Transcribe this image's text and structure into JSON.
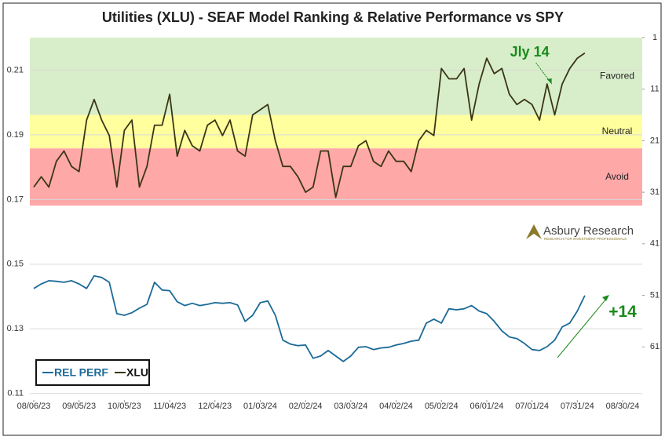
{
  "chart_data": {
    "type": "line",
    "title": "Utilities (XLU) - SEAF Model Ranking & Relative Performance vs SPY",
    "x": [
      "2023-08-06",
      "2023-08-11",
      "2023-08-16",
      "2023-08-21",
      "2023-08-26",
      "2023-08-31",
      "2023-09-05",
      "2023-09-10",
      "2023-09-15",
      "2023-09-20",
      "2023-09-25",
      "2023-09-30",
      "2023-10-05",
      "2023-10-10",
      "2023-10-15",
      "2023-10-20",
      "2023-10-25",
      "2023-10-30",
      "2023-11-04",
      "2023-11-09",
      "2023-11-14",
      "2023-11-19",
      "2023-11-24",
      "2023-11-29",
      "2023-12-04",
      "2023-12-09",
      "2023-12-14",
      "2023-12-19",
      "2023-12-24",
      "2023-12-29",
      "2024-01-03",
      "2024-01-08",
      "2024-01-13",
      "2024-01-18",
      "2024-01-23",
      "2024-01-28",
      "2024-02-02",
      "2024-02-07",
      "2024-02-12",
      "2024-02-17",
      "2024-02-22",
      "2024-02-27",
      "2024-03-03",
      "2024-03-08",
      "2024-03-13",
      "2024-03-18",
      "2024-03-23",
      "2024-03-28",
      "2024-04-02",
      "2024-04-07",
      "2024-04-12",
      "2024-04-17",
      "2024-04-22",
      "2024-04-27",
      "2024-05-02",
      "2024-05-07",
      "2024-05-12",
      "2024-05-17",
      "2024-05-22",
      "2024-05-27",
      "2024-06-01",
      "2024-06-06",
      "2024-06-11",
      "2024-06-16",
      "2024-06-21",
      "2024-06-26",
      "2024-07-01",
      "2024-07-06",
      "2024-07-11",
      "2024-07-16",
      "2024-07-21",
      "2024-07-26",
      "2024-07-31",
      "2024-08-05"
    ],
    "xlim": [
      "2023-08-06",
      "2024-08-30"
    ],
    "xticks": [
      {
        "value": "2023-08-06",
        "label": "08/06/23"
      },
      {
        "value": "2023-09-05",
        "label": "09/05/23"
      },
      {
        "value": "2023-10-05",
        "label": "10/05/23"
      },
      {
        "value": "2023-11-04",
        "label": "11/04/23"
      },
      {
        "value": "2023-12-04",
        "label": "12/04/23"
      },
      {
        "value": "2024-01-03",
        "label": "01/03/24"
      },
      {
        "value": "2024-02-02",
        "label": "02/02/24"
      },
      {
        "value": "2024-03-03",
        "label": "03/03/24"
      },
      {
        "value": "2024-04-02",
        "label": "04/02/24"
      },
      {
        "value": "2024-05-02",
        "label": "05/02/24"
      },
      {
        "value": "2024-06-01",
        "label": "06/01/24"
      },
      {
        "value": "2024-07-01",
        "label": "07/01/24"
      },
      {
        "value": "2024-07-31",
        "label": "07/31/24"
      },
      {
        "value": "2024-08-30",
        "label": "08/30/24"
      }
    ],
    "ylim": [
      0.108,
      0.222
    ],
    "yticks": [
      0.11,
      0.13,
      0.15,
      0.17,
      0.19,
      0.21
    ],
    "y2lim": [
      71.3,
      -0.2
    ],
    "y2ticks": [
      1,
      11,
      21,
      31,
      41,
      51,
      61
    ],
    "grid": true,
    "bands": [
      {
        "label": "Favored",
        "from": 1,
        "to": 16,
        "color": "#d8eecb"
      },
      {
        "label": "Neutral",
        "from": 16,
        "to": 22.5,
        "color": "#ffff9e"
      },
      {
        "label": "Avoid",
        "from": 22.5,
        "to": 33.6,
        "color": "#ffa8a8"
      }
    ],
    "series": [
      {
        "name": "REL PERF",
        "color": "#1b6a98",
        "axis": "y",
        "values": [
          0.1425,
          0.1439,
          0.1449,
          0.1447,
          0.1444,
          0.1449,
          0.1439,
          0.1425,
          0.1464,
          0.1459,
          0.1444,
          0.1347,
          0.1342,
          0.135,
          0.1364,
          0.1376,
          0.1444,
          0.142,
          0.1418,
          0.1384,
          0.1372,
          0.1379,
          0.1372,
          0.1376,
          0.1381,
          0.1379,
          0.1381,
          0.1374,
          0.1323,
          0.1342,
          0.1381,
          0.1386,
          0.1342,
          0.1265,
          0.1253,
          0.1248,
          0.125,
          0.1209,
          0.1216,
          0.1233,
          0.1216,
          0.1199,
          0.1216,
          0.1243,
          0.1245,
          0.1236,
          0.1241,
          0.1243,
          0.125,
          0.1255,
          0.1262,
          0.1265,
          0.1318,
          0.133,
          0.1318,
          0.1362,
          0.1359,
          0.1362,
          0.1372,
          0.1355,
          0.1347,
          0.1323,
          0.1294,
          0.1275,
          0.127,
          0.1255,
          0.1236,
          0.1233,
          0.1245,
          0.1265,
          0.1306,
          0.1318,
          0.1355,
          0.1403
        ]
      },
      {
        "name": "XLU",
        "color": "#3a3614",
        "axis": "y2",
        "values": [
          30,
          28,
          30,
          25,
          23,
          26,
          27,
          17,
          13,
          17,
          20,
          30,
          19,
          17,
          30,
          26,
          18,
          18,
          12,
          24,
          19,
          22,
          23,
          18,
          17,
          20,
          17,
          23,
          24,
          16,
          15,
          14,
          21,
          26,
          26,
          28,
          31,
          30,
          23,
          23,
          32,
          26,
          26,
          22,
          21,
          25,
          26,
          23,
          25,
          25,
          27,
          21,
          19,
          20,
          7,
          9,
          9,
          7,
          17,
          10,
          5,
          8,
          7,
          12,
          14,
          13,
          14,
          17,
          10,
          16,
          10,
          7,
          5,
          4
        ]
      }
    ],
    "legend": "lower left",
    "annotations": [
      {
        "text": "Jly 14",
        "x": "2024-07-14",
        "y": 10
      },
      {
        "text": "+14",
        "x": "2024-08-30",
        "y": 0.135
      }
    ],
    "logo": {
      "name": "Asbury Research",
      "tagline": "RESEARCH FOR INVESTMENT PROFESSIONALS"
    }
  }
}
